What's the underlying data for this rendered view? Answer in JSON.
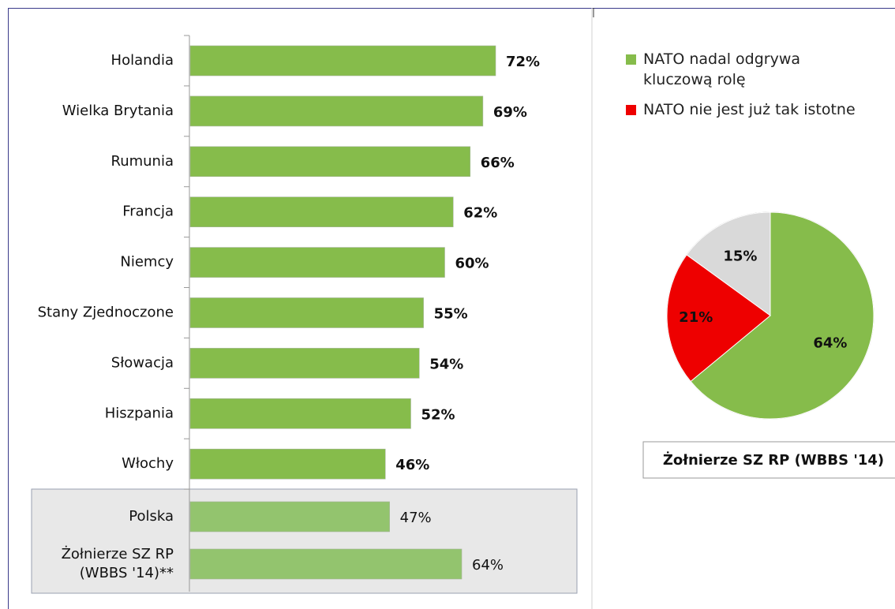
{
  "chart_data": [
    {
      "type": "bar",
      "orientation": "horizontal",
      "categories": [
        "Holandia",
        "Wielka Brytania",
        "Rumunia",
        "Francja",
        "Niemcy",
        "Stany Zjednoczone",
        "Słowacja",
        "Hiszpania",
        "Włochy",
        "Polska",
        "Żołnierze SZ RP\n(WBBS '14)**"
      ],
      "values": [
        72,
        69,
        66,
        62,
        60,
        55,
        54,
        52,
        46,
        47,
        64
      ],
      "value_labels": [
        "72%",
        "69%",
        "66%",
        "62%",
        "60%",
        "55%",
        "54%",
        "52%",
        "46%",
        "47%",
        "64%"
      ],
      "colors": [
        "#86bc4b",
        "#86bc4b",
        "#86bc4b",
        "#86bc4b",
        "#86bc4b",
        "#86bc4b",
        "#86bc4b",
        "#86bc4b",
        "#86bc4b",
        "#93c46e",
        "#93c46e"
      ],
      "highlighted": [
        false,
        false,
        false,
        false,
        false,
        false,
        false,
        false,
        false,
        true,
        true
      ]
    },
    {
      "type": "pie",
      "title": "Żołnierze SZ RP (WBBS '14)",
      "labels": [
        "NATO nadal odgrywa kluczową rolę",
        "NATO nie jest już tak istotne",
        null
      ],
      "values": [
        64,
        21,
        15
      ],
      "value_labels": [
        "64%",
        "21%",
        "15%"
      ],
      "colors": [
        "#86bc4b",
        "#ee0000",
        "#d9d9d9"
      ]
    }
  ]
}
